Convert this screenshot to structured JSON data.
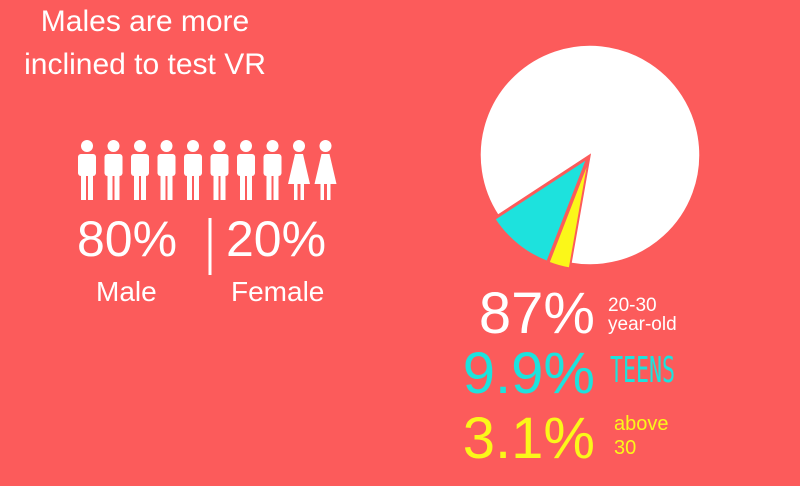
{
  "chart_data": [
    {
      "type": "pictogram",
      "title": "Males are more inclined to test VR",
      "categories": [
        "Male",
        "Female"
      ],
      "values": [
        80,
        20
      ],
      "value_labels": [
        "80%",
        "20%"
      ],
      "color": "#ffffff"
    },
    {
      "type": "pie",
      "categories": [
        "20-30 year-old",
        "TEENS",
        "above 30"
      ],
      "values": [
        87,
        9.9,
        3.1
      ],
      "value_labels": [
        "87%",
        "9.9%",
        "3.1%"
      ],
      "colors": [
        "#ffffff",
        "#1de2dd",
        "#fbf719"
      ]
    }
  ]
}
